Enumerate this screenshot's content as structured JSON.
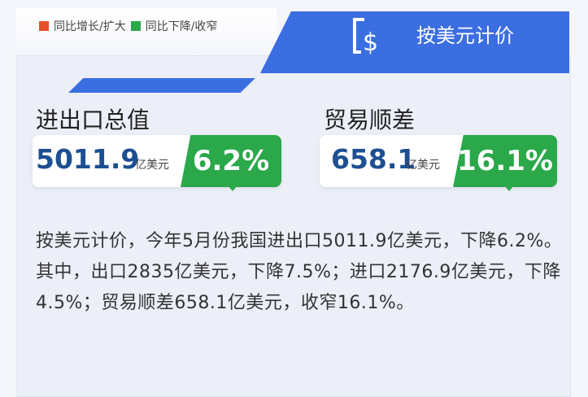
{
  "legend": {
    "up_label": "同比增长/扩大",
    "up_color": "#e8502a",
    "down_label": "同比下降/收窄",
    "down_color": "#2aa84a"
  },
  "banner": {
    "icon": "dollar-icon",
    "title": "按美元计价"
  },
  "cards": [
    {
      "label": "进出口总值",
      "value": "5011.9",
      "unit": "亿美元",
      "change": "6.2%"
    },
    {
      "label": "贸易顺差",
      "value": "658.1",
      "unit": "亿美元",
      "change": "16.1%"
    }
  ],
  "paragraph": "按美元计价，今年5月份我国进出口5011.9亿美元，下降6.2%。其中，出口2835亿美元，下降7.5%；进口2176.9亿美元，下降4.5%；贸易顺差658.1亿美元，收窄16.1%。"
}
